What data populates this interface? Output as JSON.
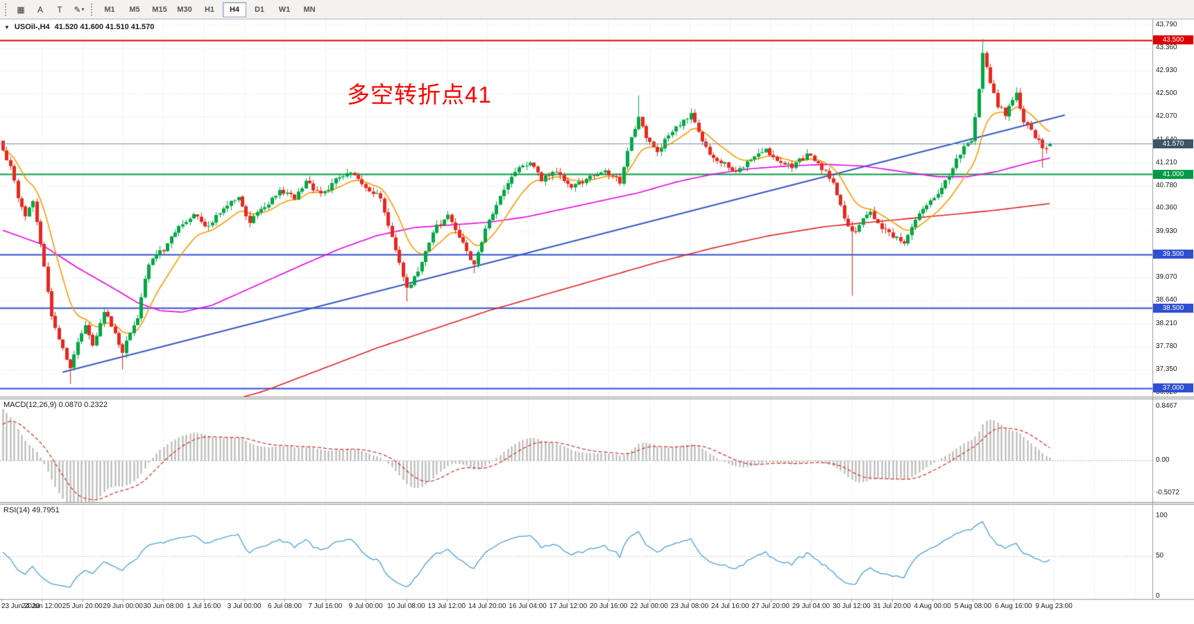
{
  "toolbar": {
    "tools": [
      {
        "name": "charts-grid",
        "glyph": "▦"
      },
      {
        "name": "cursor-text",
        "glyph": "A"
      },
      {
        "name": "text-label",
        "glyph": "T"
      },
      {
        "name": "draw-objects",
        "glyph": "✎",
        "caret": "▾"
      }
    ],
    "timeframes": [
      {
        "label": "M1",
        "active": false
      },
      {
        "label": "M5",
        "active": false
      },
      {
        "label": "M15",
        "active": false
      },
      {
        "label": "M30",
        "active": false
      },
      {
        "label": "H1",
        "active": false
      },
      {
        "label": "H4",
        "active": true
      },
      {
        "label": "D1",
        "active": false
      },
      {
        "label": "W1",
        "active": false
      },
      {
        "label": "MN",
        "active": false
      }
    ]
  },
  "chart": {
    "title": {
      "dropdown_glyph": "▼",
      "symbol_period": "USOil-,H4",
      "ohlc": "41.520 41.600 41.510 41.570"
    },
    "annotation": {
      "text": "多空转折点41",
      "color": "#ff0000"
    },
    "price_axis_ticks": [
      "43.790",
      "43.360",
      "42.930",
      "42.500",
      "42.070",
      "41.640",
      "41.210",
      "40.780",
      "40.360",
      "39.930",
      "39.500",
      "39.070",
      "38.640",
      "38.210",
      "37.780",
      "37.350",
      "36.920"
    ],
    "time_axis_labels": [
      "23 Jun 2020",
      "24 Jun 12:00",
      "25 Jun 20:00",
      "29 Jun 00:00",
      "30 Jun 08:00",
      "1 Jul 16:00",
      "3 Jul 00:00",
      "6 Jul 08:00",
      "7 Jul 16:00",
      "9 Jul 00:00",
      "10 Jul 08:00",
      "13 Jul 12:00",
      "14 Jul 20:00",
      "16 Jul 04:00",
      "17 Jul 12:00",
      "20 Jul 16:00",
      "22 Jul 00:00",
      "23 Jul 08:00",
      "24 Jul 16:00",
      "27 Jul 20:00",
      "29 Jul 04:00",
      "30 Jul 12:00",
      "31 Jul 20:00",
      "4 Aug 00:00",
      "5 Aug 08:00",
      "6 Aug 16:00",
      "9 Aug 23:00"
    ],
    "horizontal_lines": [
      {
        "price": 43.5,
        "label": "43.500",
        "color": "#dd0000",
        "width": 2
      },
      {
        "price": 41.0,
        "label": "41.000",
        "color": "#009a44",
        "width": 2
      },
      {
        "price": 39.5,
        "label": "39.500",
        "color": "#2f4fd0",
        "width": 2
      },
      {
        "price": 38.5,
        "label": "38.500",
        "color": "#2f4fd0",
        "width": 2
      },
      {
        "price": 37.0,
        "label": "37.000",
        "color": "#2f4fd0",
        "width": 2
      }
    ],
    "bid_line": {
      "price": 41.57,
      "label": "41.570",
      "line_color": "#6a8faf",
      "badge_color": "#3d5466"
    },
    "colors": {
      "bull": "#00a843",
      "bear": "#e8281e",
      "grid": "#dedede",
      "background": "#ffffff",
      "ma_fast": "#ff9900",
      "ma_medium": "#e800e8",
      "ma_slow": "#dd2222",
      "trendline": "#3558c0",
      "macd_histogram": "#b4b4b4",
      "macd_signal": "#dd3333",
      "rsi_line": "#4aa0d8"
    }
  },
  "indicators": {
    "macd": {
      "label": "MACD(12,26,9) 0.0870 0.2322",
      "main_value": 0.087,
      "signal_value": 0.2322,
      "scale": [
        {
          "text": "0.8467",
          "v": 0.8467
        },
        {
          "text": "0.00",
          "v": 0
        },
        {
          "text": "-0.5072",
          "v": -0.5072
        }
      ]
    },
    "rsi": {
      "label": "RSI(14) 49.7951",
      "value": 49.7951,
      "scale": [
        {
          "text": "100",
          "v": 100
        },
        {
          "text": "50",
          "v": 50
        },
        {
          "text": "0",
          "v": 0
        }
      ]
    }
  },
  "chart_data": {
    "type": "candlestick",
    "symbol": "USOil",
    "period": "H4",
    "title": "USOil-,H4",
    "current": {
      "open": 41.52,
      "high": 41.6,
      "low": 41.51,
      "close": 41.57
    },
    "ylim": [
      36.85,
      43.89
    ],
    "xrange": [
      "23 Jun 2020",
      "9 Aug 2020 23:00"
    ],
    "candle_count": 281,
    "price_path": [
      [
        0,
        41.4
      ],
      [
        2,
        41.15
      ],
      [
        4,
        40.55
      ],
      [
        6,
        40.25
      ],
      [
        8,
        40.45
      ],
      [
        10,
        39.7
      ],
      [
        13,
        38.3
      ],
      [
        16,
        37.75
      ],
      [
        18,
        37.35
      ],
      [
        20,
        37.85
      ],
      [
        22,
        38.15
      ],
      [
        24,
        37.8
      ],
      [
        27,
        38.45
      ],
      [
        30,
        38.05
      ],
      [
        32,
        37.65
      ],
      [
        34,
        38.05
      ],
      [
        36,
        38.35
      ],
      [
        39,
        39.35
      ],
      [
        43,
        39.6
      ],
      [
        47,
        40.0
      ],
      [
        51,
        40.25
      ],
      [
        55,
        40.0
      ],
      [
        59,
        40.4
      ],
      [
        63,
        40.55
      ],
      [
        66,
        40.1
      ],
      [
        70,
        40.4
      ],
      [
        74,
        40.7
      ],
      [
        78,
        40.55
      ],
      [
        81,
        40.85
      ],
      [
        85,
        40.6
      ],
      [
        89,
        40.9
      ],
      [
        93,
        41.0
      ],
      [
        97,
        40.75
      ],
      [
        101,
        40.55
      ],
      [
        105,
        39.6
      ],
      [
        108,
        38.85
      ],
      [
        111,
        39.15
      ],
      [
        115,
        39.95
      ],
      [
        119,
        40.2
      ],
      [
        122,
        39.85
      ],
      [
        126,
        39.3
      ],
      [
        129,
        40.0
      ],
      [
        133,
        40.55
      ],
      [
        137,
        41.05
      ],
      [
        141,
        41.2
      ],
      [
        144,
        40.9
      ],
      [
        148,
        41.05
      ],
      [
        152,
        40.78
      ],
      [
        156,
        40.9
      ],
      [
        161,
        41.05
      ],
      [
        165,
        40.85
      ],
      [
        168,
        41.7
      ],
      [
        170,
        42.05
      ],
      [
        172,
        41.65
      ],
      [
        175,
        41.4
      ],
      [
        178,
        41.75
      ],
      [
        181,
        41.95
      ],
      [
        184,
        42.1
      ],
      [
        186,
        41.75
      ],
      [
        189,
        41.35
      ],
      [
        193,
        41.2
      ],
      [
        196,
        41.05
      ],
      [
        200,
        41.28
      ],
      [
        204,
        41.45
      ],
      [
        207,
        41.28
      ],
      [
        211,
        41.15
      ],
      [
        215,
        41.35
      ],
      [
        218,
        41.2
      ],
      [
        222,
        40.85
      ],
      [
        226,
        40.0
      ],
      [
        228,
        39.95
      ],
      [
        230,
        40.15
      ],
      [
        232,
        40.28
      ],
      [
        235,
        40.0
      ],
      [
        238,
        39.85
      ],
      [
        241,
        39.7
      ],
      [
        244,
        40.15
      ],
      [
        247,
        40.4
      ],
      [
        250,
        40.65
      ],
      [
        253,
        41.0
      ],
      [
        256,
        41.4
      ],
      [
        259,
        41.65
      ],
      [
        261,
        42.55
      ],
      [
        262,
        43.25
      ],
      [
        264,
        42.7
      ],
      [
        266,
        42.28
      ],
      [
        268,
        42.12
      ],
      [
        270,
        42.35
      ],
      [
        271,
        42.48
      ],
      [
        273,
        42.0
      ],
      [
        275,
        41.8
      ],
      [
        277,
        41.6
      ],
      [
        279,
        41.45
      ],
      [
        280,
        41.57
      ]
    ],
    "wick_overrides": [
      {
        "i": 0,
        "high": 41.62
      },
      {
        "i": 18,
        "low": 37.08
      },
      {
        "i": 32,
        "low": 37.35
      },
      {
        "i": 108,
        "low": 38.62
      },
      {
        "i": 126,
        "low": 39.15
      },
      {
        "i": 170,
        "high": 42.47
      },
      {
        "i": 227,
        "low": 38.73
      },
      {
        "i": 262,
        "high": 43.52
      },
      {
        "i": 271,
        "high": 42.62
      },
      {
        "i": 278,
        "low": 41.12
      }
    ],
    "ma_fast_period": 12,
    "ma_medium_path": [
      [
        0,
        39.95
      ],
      [
        10,
        39.7
      ],
      [
        20,
        39.25
      ],
      [
        30,
        38.85
      ],
      [
        36,
        38.6
      ],
      [
        42,
        38.45
      ],
      [
        48,
        38.42
      ],
      [
        56,
        38.55
      ],
      [
        64,
        38.8
      ],
      [
        72,
        39.05
      ],
      [
        80,
        39.3
      ],
      [
        90,
        39.6
      ],
      [
        100,
        39.85
      ],
      [
        110,
        40.0
      ],
      [
        120,
        40.05
      ],
      [
        130,
        40.1
      ],
      [
        140,
        40.2
      ],
      [
        150,
        40.35
      ],
      [
        160,
        40.5
      ],
      [
        170,
        40.65
      ],
      [
        180,
        40.85
      ],
      [
        190,
        41.0
      ],
      [
        200,
        41.1
      ],
      [
        210,
        41.15
      ],
      [
        220,
        41.18
      ],
      [
        230,
        41.15
      ],
      [
        240,
        41.05
      ],
      [
        250,
        40.95
      ],
      [
        258,
        40.95
      ],
      [
        266,
        41.05
      ],
      [
        274,
        41.2
      ],
      [
        280,
        41.3
      ]
    ],
    "ma_slow_path": [
      [
        50,
        36.55
      ],
      [
        70,
        36.95
      ],
      [
        85,
        37.35
      ],
      [
        100,
        37.75
      ],
      [
        115,
        38.1
      ],
      [
        130,
        38.45
      ],
      [
        145,
        38.75
      ],
      [
        160,
        39.05
      ],
      [
        175,
        39.35
      ],
      [
        190,
        39.62
      ],
      [
        205,
        39.85
      ],
      [
        220,
        40.02
      ],
      [
        235,
        40.12
      ],
      [
        250,
        40.22
      ],
      [
        265,
        40.32
      ],
      [
        280,
        40.45
      ]
    ],
    "trendline": {
      "from": [
        16,
        37.3
      ],
      "to": [
        284,
        42.1
      ]
    },
    "macd": {
      "fast": 12,
      "slow": 26,
      "signal": 9,
      "seed_fast": 41.3,
      "seed_slow": 40.45,
      "seed_signal": 0.5,
      "range": [
        -0.65,
        0.95
      ]
    },
    "rsi": {
      "period": 14,
      "range": [
        0,
        100
      ],
      "level": 50
    }
  }
}
